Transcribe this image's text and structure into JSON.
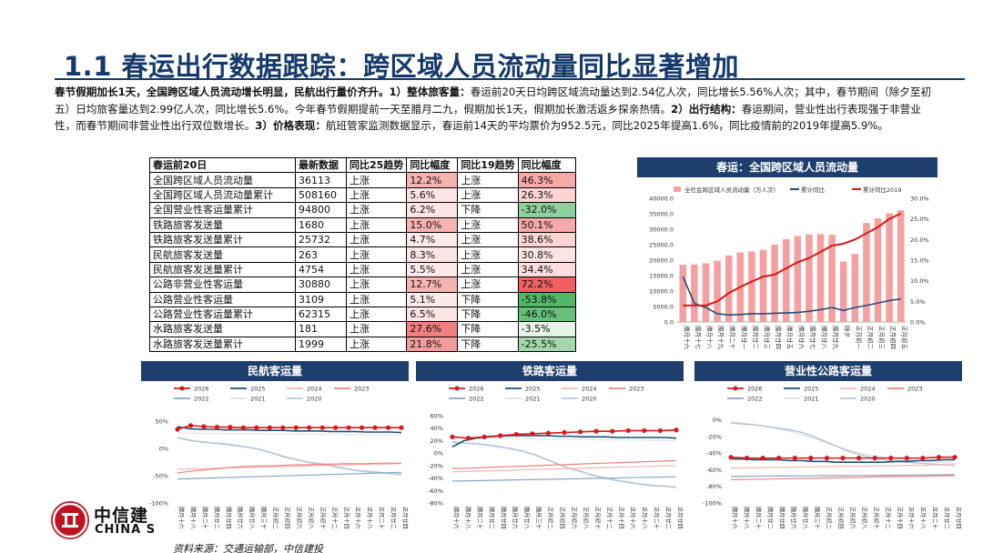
{
  "title": "1.1 春运出行数据跟踪：跨区域人员流动量同比显著增加",
  "summary": {
    "lead": "春节假期加长1天，全国跨区域人员流动增长明显，民航出行量价齐升。",
    "p1_head": "1）整体旅客量：",
    "p1": "春运前20天日均跨区域流动量达到2.54亿人次，同比增长5.56%人次；其中，春节期间（除夕至初五）日均旅客量达到2.99亿人次，同比增长5.6%。今年春节假期提前一天至腊月二九，假期加长1天，假期加长激活返乡探亲热情。",
    "p2_head": "2）出行结构：",
    "p2": "春运期间，营业性出行表现强于非营业性，而春节期间非营业性出行双位数增长。",
    "p3_head": "3）价格表现：",
    "p3": "航班管家监测数据显示，春运前14天的平均票价为952.5元，同比2025年提高1.6%，同比疫情前的2019年提高5.9%。"
  },
  "table": {
    "header": [
      "春运前20日",
      "最新数据",
      "同比25趋势",
      "同比幅度",
      "同比19趋势",
      "同比幅度"
    ],
    "rows": [
      [
        "全国跨区域人员流动量",
        "36113",
        "上涨",
        "12.2%",
        "上涨",
        "46.3%"
      ],
      [
        "全国跨区域人员流动量累计",
        "508160",
        "上涨",
        "5.6%",
        "上涨",
        "26.3%"
      ],
      [
        "全国营业性客运量累计",
        "94800",
        "上涨",
        "6.2%",
        "下降",
        "-32.0%"
      ],
      [
        "铁路旅客发送量",
        "1680",
        "上涨",
        "15.0%",
        "上涨",
        "50.1%"
      ],
      [
        "铁路旅客发送量累计",
        "25732",
        "上涨",
        "4.7%",
        "上涨",
        "38.6%"
      ],
      [
        "民航旅客发送量",
        "263",
        "上涨",
        "8.3%",
        "上涨",
        "30.8%"
      ],
      [
        "民航旅客发送量累计",
        "4754",
        "上涨",
        "5.5%",
        "上涨",
        "34.4%"
      ],
      [
        "公路非营业性客运量",
        "30880",
        "上涨",
        "12.7%",
        "上涨",
        "72.2%"
      ],
      [
        "公路营业性客运量",
        "3109",
        "上涨",
        "5.1%",
        "下降",
        "-53.8%"
      ],
      [
        "公路营业性客运量累计",
        "62315",
        "上涨",
        "6.5%",
        "下降",
        "-46.0%"
      ],
      [
        "水路旅客发送量",
        "181",
        "上涨",
        "27.6%",
        "下降",
        "-3.5%"
      ],
      [
        "水路旅客发送量累计",
        "1999",
        "上涨",
        "21.8%",
        "下降",
        "-25.5%"
      ]
    ],
    "colors": {
      "c3": [
        "#f7b2b2",
        "#fce4e4",
        "#fce4e4",
        "#f7b2b2",
        "#fde9e9",
        "#fde4e4",
        "#fde9e9",
        "#f7b2b2",
        "#fde9e9",
        "#fde4e4",
        "#f08080",
        "#f39c9c"
      ],
      "c5": [
        "#f7a8a8",
        "#fcd4d4",
        "#8fd19e",
        "#f7a8a8",
        "#fcd4d4",
        "#fde4e4",
        "#fddcdc",
        "#f06060",
        "#52b868",
        "#66bf7a",
        "#e4f4e6",
        "#a3d8ad"
      ]
    }
  },
  "chart_data": [
    {
      "type": "bar+line",
      "title": "春运：全国跨区域人员流动量",
      "legend": [
        "全社会跨区域人员流动量（万人次）",
        "累计同比",
        "累计同比2019"
      ],
      "y_left_ticks": [
        "40000.0",
        "35000.0",
        "30000.0",
        "25000.0",
        "20000.0",
        "15000.0",
        "10000.0",
        "5000.0",
        "0.0"
      ],
      "y_right_ticks": [
        "30.0%",
        "25.0%",
        "20.0%",
        "15.0%",
        "10.0%",
        "5.0%",
        "0.0%"
      ],
      "ylim_left": [
        0,
        40000
      ],
      "ylim_right": [
        0,
        30
      ],
      "categories": [
        "腊月十六",
        "腊月十七",
        "腊月十八",
        "腊月十九",
        "腊月二十",
        "腊月廿一",
        "腊月廿二",
        "腊月廿三",
        "腊月廿四",
        "腊月廿五",
        "腊月廿六",
        "腊月廿七",
        "腊月廿八",
        "腊月廿九",
        "除夕",
        "正月初一",
        "正月初二",
        "正月初三",
        "正月初四",
        "正月初五"
      ],
      "bars": [
        18500,
        18600,
        19000,
        19800,
        21500,
        22500,
        22800,
        23300,
        25000,
        26800,
        27800,
        28300,
        28400,
        28200,
        19500,
        22000,
        32000,
        33500,
        35200,
        36100
      ],
      "series": [
        {
          "name": "累计同比",
          "values": [
            11,
            4.5,
            3.5,
            2,
            1.7,
            1.8,
            2,
            2,
            2.1,
            2.2,
            2.3,
            2.6,
            3,
            3.5,
            2.8,
            3.5,
            4,
            4.6,
            5.2,
            5.6
          ]
        },
        {
          "name": "累计同比2019",
          "values": [
            4,
            4,
            4,
            5,
            7,
            8.5,
            9.8,
            11,
            11.5,
            13,
            14.5,
            15.5,
            17,
            18.5,
            19,
            20,
            21.5,
            23,
            25,
            26.3
          ]
        }
      ]
    },
    {
      "type": "line",
      "title": "民航客运量",
      "legend": [
        "2026",
        "2025",
        "2024",
        "2023",
        "2022",
        "2021",
        "2020"
      ],
      "y_ticks": [
        "50%",
        "0%",
        "-50%",
        "-100%"
      ],
      "ylim": [
        -100,
        60
      ],
      "categories": [
        "腊月十六",
        "腊月十八",
        "腊月二十",
        "腊月廿二",
        "腊月廿四",
        "腊月廿六",
        "腊月廿八",
        "腊月三十",
        "正月初二",
        "正月初四",
        "正月初六",
        "正月初八",
        "正月初十",
        "正月十二",
        "正月十四",
        "正月十六",
        "正月十八",
        "正月二十",
        "正月廿二",
        "正月廿四"
      ]
    },
    {
      "type": "line",
      "title": "铁路客运量",
      "legend": [
        "2026",
        "2025",
        "2024",
        "2023",
        "2022",
        "2021",
        "2020"
      ],
      "y_ticks": [
        "60%",
        "40%",
        "20%",
        "0%",
        "-20%",
        "-40%",
        "-60%",
        "-80%"
      ],
      "ylim": [
        -80,
        60
      ],
      "categories": [
        "腊月十六",
        "腊月十八",
        "腊月二十",
        "腊月廿二",
        "腊月廿四",
        "腊月廿六",
        "腊月廿八",
        "腊月三十",
        "正月初二",
        "正月初四",
        "正月初六",
        "正月初八",
        "正月初十",
        "正月十二",
        "正月十四",
        "正月十六",
        "正月十八",
        "正月二十",
        "正月廿二",
        "正月廿四"
      ]
    },
    {
      "type": "line",
      "title": "营业性公路客运量",
      "legend": [
        "2026",
        "2025",
        "2024",
        "2023",
        "2022",
        "2021",
        "2020"
      ],
      "y_ticks": [
        "0%",
        "-20%",
        "-40%",
        "-60%",
        "-80%",
        "-100%"
      ],
      "ylim": [
        -100,
        5
      ],
      "categories": [
        "腊月十六",
        "腊月十八",
        "腊月二十",
        "腊月廿二",
        "腊月廿四",
        "腊月廿六",
        "腊月廿八",
        "腊月三十",
        "正月初二",
        "正月初四",
        "正月初六",
        "正月初八",
        "正月初十",
        "正月十二",
        "正月十四",
        "正月十六",
        "正月十八",
        "正月二十",
        "正月廿二",
        "正月廿四"
      ]
    }
  ],
  "brand": {
    "cn": "中信建",
    "en": "CHINA S"
  },
  "source": "资料来源：交通运输部，中信建投",
  "palette": {
    "navy": "#1e3f6e",
    "red": "#d7191c",
    "pink": "#f4a0a0",
    "blue": "#1f4e79",
    "lightblue": "#b7c7d9",
    "gray": "#b0b0b0"
  }
}
